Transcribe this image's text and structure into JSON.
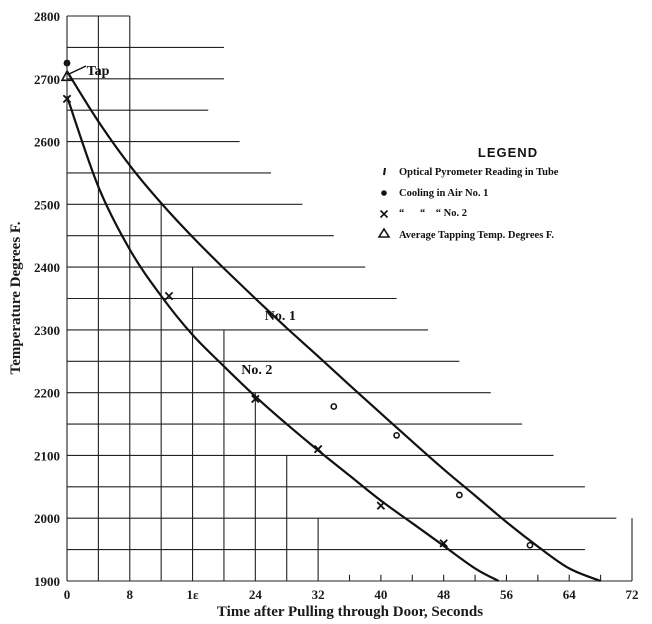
{
  "chart_data": {
    "type": "line",
    "title": "",
    "xlabel": "Time after Pulling through Door, Seconds",
    "ylabel": "Temperature Degrees F.",
    "xlim": [
      0,
      72
    ],
    "ylim": [
      1900,
      2800
    ],
    "xticks": [
      0,
      8,
      16,
      24,
      32,
      40,
      48,
      56,
      64,
      72
    ],
    "xtick_labels": [
      "0",
      "8",
      "1ε",
      "24",
      "32",
      "40",
      "48",
      "56",
      "64",
      "72"
    ],
    "yticks": [
      1900,
      2000,
      2100,
      2200,
      2300,
      2400,
      2500,
      2600,
      2700,
      2800
    ],
    "grid": true,
    "legend": {
      "title": "LEGEND",
      "placement": "right",
      "entries": [
        {
          "marker": "tick",
          "label": "Optical Pyrometer Reading in Tube"
        },
        {
          "marker": "dot",
          "label": "Cooling in Air No. 1"
        },
        {
          "marker": "x",
          "label": "“      “    “ No. 2"
        },
        {
          "marker": "triangle",
          "label": "Average Tapping Temp. Degrees F."
        }
      ]
    },
    "annotations": [
      {
        "text": "Tap",
        "x": 2.5,
        "y": 2706
      },
      {
        "text": "No. 1",
        "x": 25.2,
        "y": 2316
      },
      {
        "text": "No. 2",
        "x": 22.2,
        "y": 2230
      }
    ],
    "series": [
      {
        "name": "No. 1",
        "x": [
          0,
          4,
          8,
          12,
          16,
          20,
          24,
          28,
          32,
          36,
          40,
          44,
          48,
          52,
          56,
          60,
          64,
          68
        ],
        "y": [
          2712,
          2632,
          2562,
          2502,
          2448,
          2398,
          2350,
          2303,
          2258,
          2212,
          2167,
          2122,
          2078,
          2036,
          1994,
          1955,
          1920,
          1900
        ]
      },
      {
        "name": "No. 2",
        "x": [
          0,
          4,
          8,
          12,
          16,
          20,
          24,
          28,
          32,
          36,
          40,
          44,
          48,
          52,
          55
        ],
        "y": [
          2672,
          2528,
          2428,
          2354,
          2292,
          2242,
          2194,
          2150,
          2108,
          2068,
          2028,
          1992,
          1956,
          1920,
          1900
        ]
      }
    ],
    "points": {
      "cooling_no1": {
        "x": [
          0,
          34,
          42,
          50,
          59
        ],
        "y": [
          2725,
          2178,
          2132,
          2037,
          1957
        ]
      },
      "cooling_no2": {
        "x": [
          0,
          13,
          24,
          32,
          40,
          48
        ],
        "y": [
          2668,
          2354,
          2190,
          2110,
          2020,
          1960
        ]
      },
      "tapping": {
        "x": [
          0
        ],
        "y": [
          2704
        ]
      }
    }
  }
}
